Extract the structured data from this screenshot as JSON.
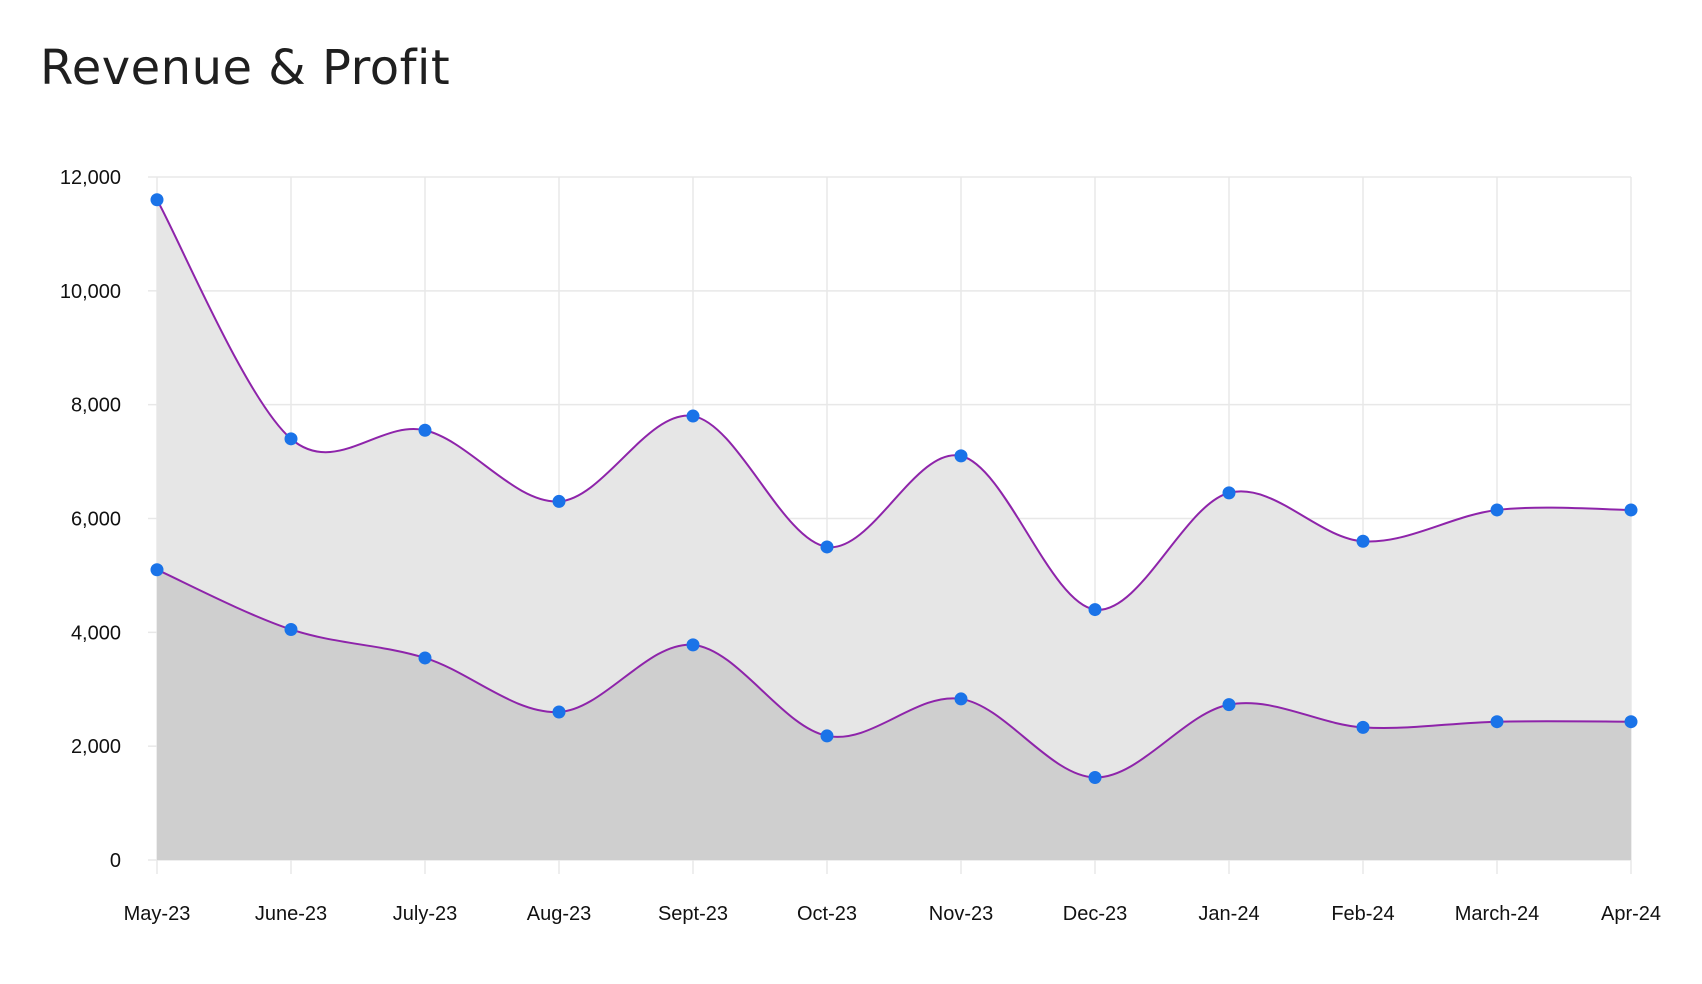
{
  "page_title": "Revenue & Profit",
  "chart_data": {
    "type": "area",
    "title": "Revenue & Profit",
    "xlabel": "",
    "ylabel": "",
    "categories": [
      "May-23",
      "June-23",
      "July-23",
      "Aug-23",
      "Sept-23",
      "Oct-23",
      "Nov-23",
      "Dec-23",
      "Jan-24",
      "Feb-24",
      "March-24",
      "Apr-24"
    ],
    "series": [
      {
        "values": [
          11600,
          7400,
          7550,
          6300,
          7800,
          5500,
          7100,
          4400,
          6450,
          5600,
          6150,
          6150
        ]
      },
      {
        "values": [
          5100,
          4050,
          3550,
          2600,
          3780,
          2180,
          2830,
          1450,
          2730,
          2330,
          2430,
          2430
        ]
      }
    ],
    "ylim": [
      0,
      12000
    ],
    "yticks": [
      0,
      2000,
      4000,
      6000,
      8000,
      10000,
      12000
    ],
    "ytick_labels": [
      "0",
      "2,000",
      "4,000",
      "6,000",
      "8,000",
      "10,000",
      "12,000"
    ],
    "grid": true,
    "legend": "none",
    "colors": {
      "line": "#8e24aa",
      "marker": "#1a73e8",
      "fill_upper": "#e6e6e6",
      "fill_lower": "#cfcfcf",
      "grid": "#e8e8e8"
    }
  }
}
